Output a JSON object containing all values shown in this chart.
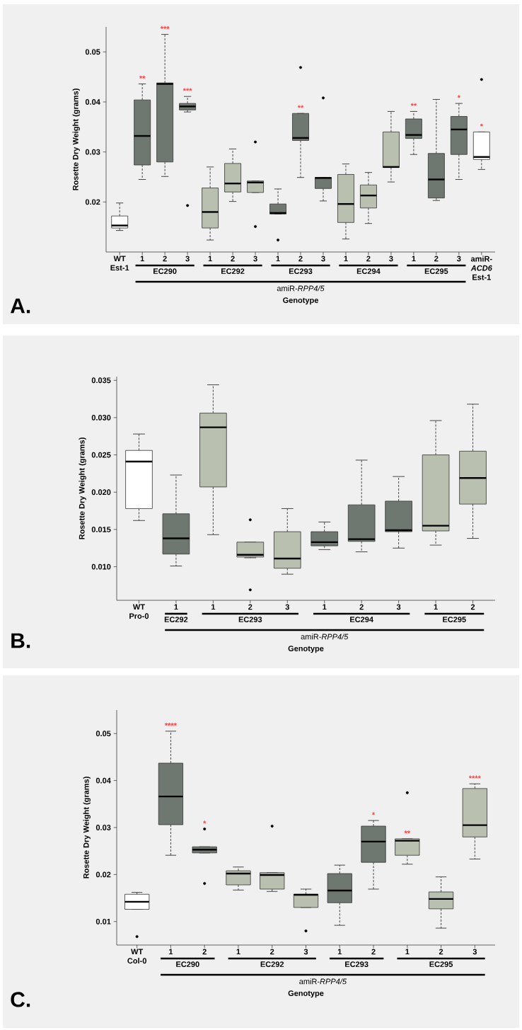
{
  "chart_data": [
    {
      "type": "box",
      "title": "A.",
      "xlabel": "Genotype",
      "ylabel": "Rosette Dry Weight (grams)",
      "categories": [
        "WT Est-1",
        "1",
        "2",
        "3",
        "1",
        "2",
        "3",
        "1",
        "2",
        "3",
        "1",
        "2",
        "3",
        "1",
        "2",
        "3",
        "amiR-*ACD6* Est-1"
      ],
      "colors": [
        "#ffffff",
        "#6f7771",
        "#6f7771",
        "#6f7771",
        "#b9c0af",
        "#b9c0af",
        "#b9c0af",
        "#6f7771",
        "#6f7771",
        "#6f7771",
        "#b9c0af",
        "#b9c0af",
        "#b9c0af",
        "#6f7771",
        "#6f7771",
        "#6f7771",
        "#ffffff"
      ],
      "boxes": [
        {
          "low": 0.0143,
          "q1": 0.0148,
          "median": 0.0153,
          "q3": 0.0172,
          "high": 0.0198
        },
        {
          "low": 0.0245,
          "q1": 0.0274,
          "median": 0.0332,
          "q3": 0.0404,
          "high": 0.0436
        },
        {
          "low": 0.0251,
          "q1": 0.028,
          "median": 0.0436,
          "q3": 0.0438,
          "high": 0.0535
        },
        {
          "low": 0.038,
          "q1": 0.0384,
          "median": 0.0391,
          "q3": 0.0397,
          "high": 0.0411,
          "outliers": [
            0.0193
          ]
        },
        {
          "low": 0.0124,
          "q1": 0.0148,
          "median": 0.018,
          "q3": 0.0228,
          "high": 0.027
        },
        {
          "low": 0.0201,
          "q1": 0.022,
          "median": 0.0237,
          "q3": 0.0277,
          "high": 0.0306
        },
        {
          "low": 0.0219,
          "q1": 0.0219,
          "median": 0.0239,
          "q3": 0.0242,
          "high": 0.0242,
          "outliers": [
            0.032,
            0.0151
          ]
        },
        {
          "low": 0.0176,
          "q1": 0.0176,
          "median": 0.0178,
          "q3": 0.0196,
          "high": 0.0226,
          "outliers": [
            0.0124
          ]
        },
        {
          "low": 0.0249,
          "q1": 0.0323,
          "median": 0.0328,
          "q3": 0.0377,
          "high": 0.0377,
          "outliers": [
            0.0469
          ]
        },
        {
          "low": 0.0202,
          "q1": 0.0227,
          "median": 0.0248,
          "q3": 0.0249,
          "high": 0.0249,
          "outliers": [
            0.0408
          ]
        },
        {
          "low": 0.0126,
          "q1": 0.0159,
          "median": 0.0196,
          "q3": 0.0255,
          "high": 0.0276
        },
        {
          "low": 0.0157,
          "q1": 0.0188,
          "median": 0.0213,
          "q3": 0.0234,
          "high": 0.0259
        },
        {
          "low": 0.024,
          "q1": 0.0269,
          "median": 0.027,
          "q3": 0.034,
          "high": 0.0381
        },
        {
          "low": 0.0295,
          "q1": 0.0327,
          "median": 0.0334,
          "q3": 0.0366,
          "high": 0.0381
        },
        {
          "low": 0.0203,
          "q1": 0.0208,
          "median": 0.0245,
          "q3": 0.0297,
          "high": 0.0405
        },
        {
          "low": 0.0245,
          "q1": 0.0295,
          "median": 0.0345,
          "q3": 0.0371,
          "high": 0.0397
        },
        {
          "low": 0.0265,
          "q1": 0.0285,
          "median": 0.029,
          "q3": 0.034,
          "high": 0.034,
          "outliers": [
            0.0445
          ]
        }
      ],
      "value_labels": [
        null,
        "**",
        "***",
        "***",
        null,
        null,
        null,
        null,
        "**",
        null,
        null,
        null,
        null,
        "**",
        null,
        "*",
        "*"
      ],
      "ylim": [
        0.01,
        0.055
      ],
      "yticks": [
        0.02,
        0.03,
        0.04,
        0.05
      ],
      "annotations": [
        "EC290",
        "EC292",
        "EC293",
        "EC294",
        "EC295",
        "amiR-*RPP4/5*"
      ]
    },
    {
      "type": "box",
      "title": "B.",
      "xlabel": "Genotype",
      "ylabel": "Rosette Dry Weight (grams)",
      "categories": [
        "WT Pro-0",
        "1",
        "1",
        "2",
        "3",
        "1",
        "2",
        "3",
        "1",
        "2"
      ],
      "colors": [
        "#ffffff",
        "#6f7771",
        "#b9c0af",
        "#b9c0af",
        "#b9c0af",
        "#6f7771",
        "#6f7771",
        "#6f7771",
        "#b9c0af",
        "#b9c0af"
      ],
      "boxes": [
        {
          "low": 0.0162,
          "q1": 0.0178,
          "median": 0.0241,
          "q3": 0.0256,
          "high": 0.0278
        },
        {
          "low": 0.0101,
          "q1": 0.0117,
          "median": 0.0138,
          "q3": 0.0171,
          "high": 0.0223
        },
        {
          "low": 0.0143,
          "q1": 0.0207,
          "median": 0.0287,
          "q3": 0.0306,
          "high": 0.0344
        },
        {
          "low": 0.0112,
          "q1": 0.0113,
          "median": 0.0116,
          "q3": 0.0133,
          "high": 0.0133,
          "outliers": [
            0.0163,
            0.0069
          ]
        },
        {
          "low": 0.009,
          "q1": 0.0098,
          "median": 0.0111,
          "q3": 0.0147,
          "high": 0.0178
        },
        {
          "low": 0.0123,
          "q1": 0.0128,
          "median": 0.0133,
          "q3": 0.0147,
          "high": 0.016
        },
        {
          "low": 0.012,
          "q1": 0.0134,
          "median": 0.0137,
          "q3": 0.0183,
          "high": 0.0243
        },
        {
          "low": 0.0125,
          "q1": 0.0147,
          "median": 0.0149,
          "q3": 0.0188,
          "high": 0.0221
        },
        {
          "low": 0.0129,
          "q1": 0.0148,
          "median": 0.0155,
          "q3": 0.025,
          "high": 0.0296
        },
        {
          "low": 0.0138,
          "q1": 0.0184,
          "median": 0.0219,
          "q3": 0.0255,
          "high": 0.0318
        }
      ],
      "ylim": [
        0.0055,
        0.0355
      ],
      "yticks": [
        {
          "value": 0.01,
          "label": "0.010"
        },
        {
          "value": 0.015,
          "label": "0.015"
        },
        {
          "value": 0.02,
          "label": "0.020"
        },
        {
          "value": 0.025,
          "label": "0.025"
        },
        {
          "value": 0.03,
          "label": "0.030"
        },
        {
          "value": 0.035,
          "label": "0.035"
        }
      ],
      "annotations": [
        "EC292",
        "EC293",
        "EC294",
        "EC295",
        "amiR-*RPP4/5*"
      ]
    },
    {
      "type": "box",
      "title": "C.",
      "xlabel": "Genotype",
      "ylabel": "Rosette Dry Weight (grams)",
      "categories": [
        "WT Col-0",
        "1",
        "2",
        "1",
        "2",
        "3",
        "1",
        "2",
        "1",
        "2",
        "3"
      ],
      "colors": [
        "#ffffff",
        "#6f7771",
        "#6f7771",
        "#b9c0af",
        "#b9c0af",
        "#b9c0af",
        "#6f7771",
        "#6f7771",
        "#b9c0af",
        "#b9c0af",
        "#b9c0af"
      ],
      "boxes": [
        {
          "low": 0.0126,
          "q1": 0.0126,
          "median": 0.0142,
          "q3": 0.0158,
          "high": 0.0162,
          "outliers": [
            0.0068
          ]
        },
        {
          "low": 0.0241,
          "q1": 0.0306,
          "median": 0.0366,
          "q3": 0.0437,
          "high": 0.0505
        },
        {
          "low": 0.0246,
          "q1": 0.0246,
          "median": 0.0253,
          "q3": 0.0259,
          "high": 0.0259,
          "outliers": [
            0.0297,
            0.0181
          ]
        },
        {
          "low": 0.0167,
          "q1": 0.0178,
          "median": 0.0202,
          "q3": 0.0208,
          "high": 0.0216
        },
        {
          "low": 0.0164,
          "q1": 0.0169,
          "median": 0.0199,
          "q3": 0.0204,
          "high": 0.0204,
          "outliers": [
            0.0303
          ]
        },
        {
          "low": 0.013,
          "q1": 0.013,
          "median": 0.0157,
          "q3": 0.0158,
          "high": 0.0169,
          "outliers": [
            0.008
          ]
        },
        {
          "low": 0.0092,
          "q1": 0.014,
          "median": 0.0166,
          "q3": 0.0202,
          "high": 0.022
        },
        {
          "low": 0.0169,
          "q1": 0.0226,
          "median": 0.027,
          "q3": 0.0303,
          "high": 0.0315
        },
        {
          "low": 0.0222,
          "q1": 0.0241,
          "median": 0.0272,
          "q3": 0.0276,
          "high": 0.0276,
          "outliers": [
            0.0374
          ]
        },
        {
          "low": 0.0086,
          "q1": 0.0127,
          "median": 0.0148,
          "q3": 0.0163,
          "high": 0.0195
        },
        {
          "low": 0.0233,
          "q1": 0.028,
          "median": 0.0305,
          "q3": 0.0383,
          "high": 0.0393
        }
      ],
      "value_labels": [
        null,
        "****",
        "*",
        null,
        null,
        null,
        null,
        "*",
        "**",
        null,
        "****"
      ],
      "ylim": [
        0.005,
        0.055
      ],
      "yticks": [
        0.01,
        0.02,
        0.03,
        0.04,
        0.05
      ],
      "annotations": [
        "EC290",
        "EC292",
        "EC293",
        "EC295",
        "amiR-*RPP4/5*"
      ]
    }
  ]
}
